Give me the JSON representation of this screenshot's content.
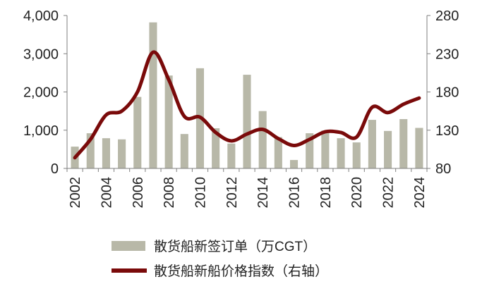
{
  "chart_data": {
    "type": "bar",
    "title": "",
    "xlabel": "",
    "ylabel": "",
    "categories": [
      "2002",
      "2003",
      "2004",
      "2005",
      "2006",
      "2007",
      "2008",
      "2009",
      "2010",
      "2011",
      "2012",
      "2013",
      "2014",
      "2015",
      "2016",
      "2017",
      "2018",
      "2019",
      "2020",
      "2021",
      "2022",
      "2023",
      "2024"
    ],
    "x_tick_labels": [
      "2002",
      "2004",
      "2006",
      "2008",
      "2010",
      "2012",
      "2014",
      "2016",
      "2018",
      "2020",
      "2022",
      "2024"
    ],
    "y_left": {
      "ylim": [
        0,
        4000
      ],
      "ticks": [
        0,
        1000,
        2000,
        3000,
        4000
      ],
      "tick_labels": [
        "0",
        "1,000",
        "2,000",
        "3,000",
        "4,000"
      ]
    },
    "y_right": {
      "ylim": [
        80,
        280
      ],
      "ticks": [
        80,
        130,
        180,
        230,
        280
      ],
      "tick_labels": [
        "80",
        "130",
        "180",
        "230",
        "280"
      ]
    },
    "series": [
      {
        "name": "散货船新签订单（万CGT）",
        "type": "bar",
        "axis": "left",
        "color": "#b8b8a8",
        "values": [
          570,
          920,
          790,
          760,
          1870,
          3820,
          2430,
          900,
          2620,
          1050,
          650,
          2450,
          1500,
          820,
          220,
          920,
          990,
          790,
          680,
          1270,
          980,
          1290,
          1060
        ]
      },
      {
        "name": "散货船新船价格指数（右轴）",
        "type": "line",
        "axis": "right",
        "color": "#7a0a0a",
        "values": [
          94,
          118,
          150,
          155,
          180,
          232,
          196,
          148,
          147,
          127,
          116,
          125,
          131,
          119,
          110,
          118,
          128,
          127,
          121,
          160,
          153,
          164,
          172
        ]
      }
    ],
    "legend": {
      "position": "bottom"
    },
    "grid": false
  }
}
